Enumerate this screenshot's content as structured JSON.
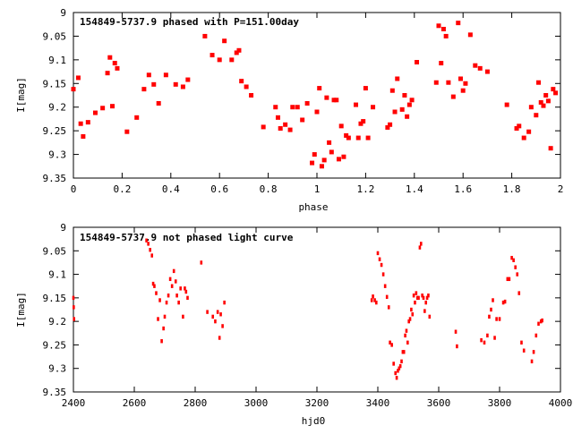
{
  "chart_data": [
    {
      "type": "scatter",
      "title": "154849-5737.9 phased with P=151.00day",
      "xlabel": "phase",
      "ylabel": "I[mag]",
      "xlim": [
        0,
        2
      ],
      "ylim": [
        9.35,
        9
      ],
      "y_inverted": true,
      "xticks": [
        0,
        0.2,
        0.4,
        0.6,
        0.8,
        1,
        1.2,
        1.4,
        1.6,
        1.8,
        2
      ],
      "xtick_labels": [
        "0",
        "0.2",
        "0.4",
        "0.6",
        "0.8",
        "1",
        "1.2",
        "1.4",
        "1.6",
        "1.8",
        "2"
      ],
      "yticks": [
        9,
        9.05,
        9.1,
        9.15,
        9.2,
        9.25,
        9.3,
        9.35
      ],
      "ytick_labels": [
        "9",
        "9.05",
        "9.1",
        "9.15",
        "9.2",
        "9.25",
        "9.3",
        "9.35"
      ],
      "grid": false,
      "marker_color": "#ff0000",
      "x": [
        0.0,
        0.02,
        0.03,
        0.04,
        0.06,
        0.09,
        0.12,
        0.14,
        0.15,
        0.16,
        0.17,
        0.18,
        0.22,
        0.26,
        0.29,
        0.31,
        0.33,
        0.35,
        0.38,
        0.42,
        0.45,
        0.47,
        0.54,
        0.57,
        0.6,
        0.62,
        0.65,
        0.67,
        0.68,
        0.69,
        0.71,
        0.73,
        0.78,
        0.83,
        0.84,
        0.85,
        0.87,
        0.89,
        0.9,
        0.92,
        0.94,
        0.96,
        0.98,
        0.99,
        1.0,
        1.01,
        1.02,
        1.03,
        1.04,
        1.05,
        1.06,
        1.07,
        1.08,
        1.09,
        1.1,
        1.11,
        1.12,
        1.13,
        1.16,
        1.17,
        1.18,
        1.19,
        1.2,
        1.21,
        1.23,
        1.29,
        1.3,
        1.31,
        1.32,
        1.33,
        1.35,
        1.36,
        1.37,
        1.38,
        1.39,
        1.41,
        1.49,
        1.5,
        1.51,
        1.52,
        1.53,
        1.54,
        1.56,
        1.58,
        1.59,
        1.6,
        1.61,
        1.63,
        1.65,
        1.67,
        1.7,
        1.78,
        1.82,
        1.83,
        1.85,
        1.87,
        1.88,
        1.9,
        1.91,
        1.92,
        1.93,
        1.94,
        1.95,
        1.96,
        1.97,
        1.98
      ],
      "y": [
        9.162,
        9.138,
        9.235,
        9.262,
        9.232,
        9.212,
        9.202,
        9.128,
        9.095,
        9.198,
        9.107,
        9.118,
        9.252,
        9.222,
        9.162,
        9.132,
        9.152,
        9.192,
        9.132,
        9.152,
        9.157,
        9.142,
        9.05,
        9.09,
        9.1,
        9.06,
        9.1,
        9.085,
        9.08,
        9.145,
        9.157,
        9.175,
        9.242,
        9.2,
        9.222,
        9.245,
        9.237,
        9.248,
        9.2,
        9.2,
        9.227,
        9.192,
        9.318,
        9.3,
        9.21,
        9.16,
        9.325,
        9.312,
        9.18,
        9.275,
        9.295,
        9.185,
        9.185,
        9.31,
        9.24,
        9.305,
        9.26,
        9.265,
        9.195,
        9.265,
        9.235,
        9.23,
        9.16,
        9.265,
        9.2,
        9.243,
        9.237,
        9.165,
        9.21,
        9.14,
        9.205,
        9.175,
        9.22,
        9.195,
        9.185,
        9.105,
        9.148,
        9.028,
        9.107,
        9.035,
        9.05,
        9.148,
        9.178,
        9.022,
        9.14,
        9.165,
        9.15,
        9.047,
        9.112,
        9.118,
        9.125,
        9.195,
        9.245,
        9.24,
        9.265,
        9.252,
        9.2,
        9.217,
        9.148,
        9.19,
        9.197,
        9.175,
        9.187,
        9.287,
        9.162,
        9.17
      ]
    },
    {
      "type": "scatter",
      "title": "154849-5737.9 not phased light curve",
      "xlabel": "hjd0",
      "ylabel": "I[mag]",
      "xlim": [
        2400,
        4000
      ],
      "ylim": [
        9.35,
        9
      ],
      "y_inverted": true,
      "xticks": [
        2400,
        2600,
        2800,
        3000,
        3200,
        3400,
        3600,
        3800,
        4000
      ],
      "xtick_labels": [
        "2400",
        "2600",
        "2800",
        "3000",
        "3200",
        "3400",
        "3600",
        "3800",
        "4000"
      ],
      "yticks": [
        9,
        9.05,
        9.1,
        9.15,
        9.2,
        9.25,
        9.3,
        9.35
      ],
      "ytick_labels": [
        "9",
        "9.05",
        "9.1",
        "9.15",
        "9.2",
        "9.25",
        "9.3",
        "9.35"
      ],
      "grid": false,
      "marker_color": "#ff0000",
      "x": [
        2400,
        2401,
        2402,
        2640,
        2646,
        2652,
        2658,
        2662,
        2666,
        2672,
        2678,
        2684,
        2690,
        2696,
        2700,
        2706,
        2712,
        2718,
        2724,
        2730,
        2736,
        2740,
        2746,
        2752,
        2760,
        2766,
        2770,
        2775,
        2820,
        2840,
        2858,
        2866,
        2874,
        2880,
        2884,
        2890,
        2896,
        3380,
        3384,
        3390,
        3395,
        3400,
        3406,
        3412,
        3418,
        3424,
        3430,
        3436,
        3440,
        3446,
        3452,
        3458,
        3462,
        3466,
        3470,
        3474,
        3478,
        3482,
        3486,
        3490,
        3494,
        3498,
        3502,
        3506,
        3510,
        3514,
        3518,
        3522,
        3526,
        3530,
        3534,
        3538,
        3542,
        3546,
        3550,
        3554,
        3558,
        3562,
        3566,
        3570,
        3656,
        3660,
        3740,
        3750,
        3760,
        3766,
        3772,
        3778,
        3784,
        3790,
        3800,
        3812,
        3818,
        3826,
        3832,
        3840,
        3846,
        3852,
        3858,
        3864,
        3872,
        3880,
        3906,
        3912,
        3920,
        3928,
        3936,
        3940
      ],
      "y": [
        9.15,
        9.17,
        9.195,
        9.028,
        9.035,
        9.048,
        9.06,
        9.12,
        9.125,
        9.14,
        9.195,
        9.155,
        9.242,
        9.215,
        9.19,
        9.16,
        9.145,
        9.11,
        9.125,
        9.093,
        9.115,
        9.145,
        9.16,
        9.13,
        9.19,
        9.13,
        9.137,
        9.15,
        9.075,
        9.18,
        9.19,
        9.2,
        9.18,
        9.235,
        9.185,
        9.21,
        9.16,
        9.155,
        9.147,
        9.155,
        9.16,
        9.055,
        9.068,
        9.08,
        9.1,
        9.125,
        9.148,
        9.17,
        9.245,
        9.25,
        9.29,
        9.31,
        9.32,
        9.305,
        9.3,
        9.295,
        9.285,
        9.265,
        9.265,
        9.23,
        9.22,
        9.245,
        9.2,
        9.195,
        9.175,
        9.185,
        9.145,
        9.16,
        9.14,
        9.15,
        9.15,
        9.043,
        9.035,
        9.145,
        9.15,
        9.178,
        9.16,
        9.15,
        9.145,
        9.19,
        9.222,
        9.253,
        9.24,
        9.245,
        9.23,
        9.19,
        9.175,
        9.155,
        9.235,
        9.195,
        9.195,
        9.16,
        9.158,
        9.11,
        9.11,
        9.065,
        9.07,
        9.085,
        9.1,
        9.14,
        9.245,
        9.262,
        9.285,
        9.265,
        9.23,
        9.205,
        9.2,
        9.198
      ]
    }
  ]
}
